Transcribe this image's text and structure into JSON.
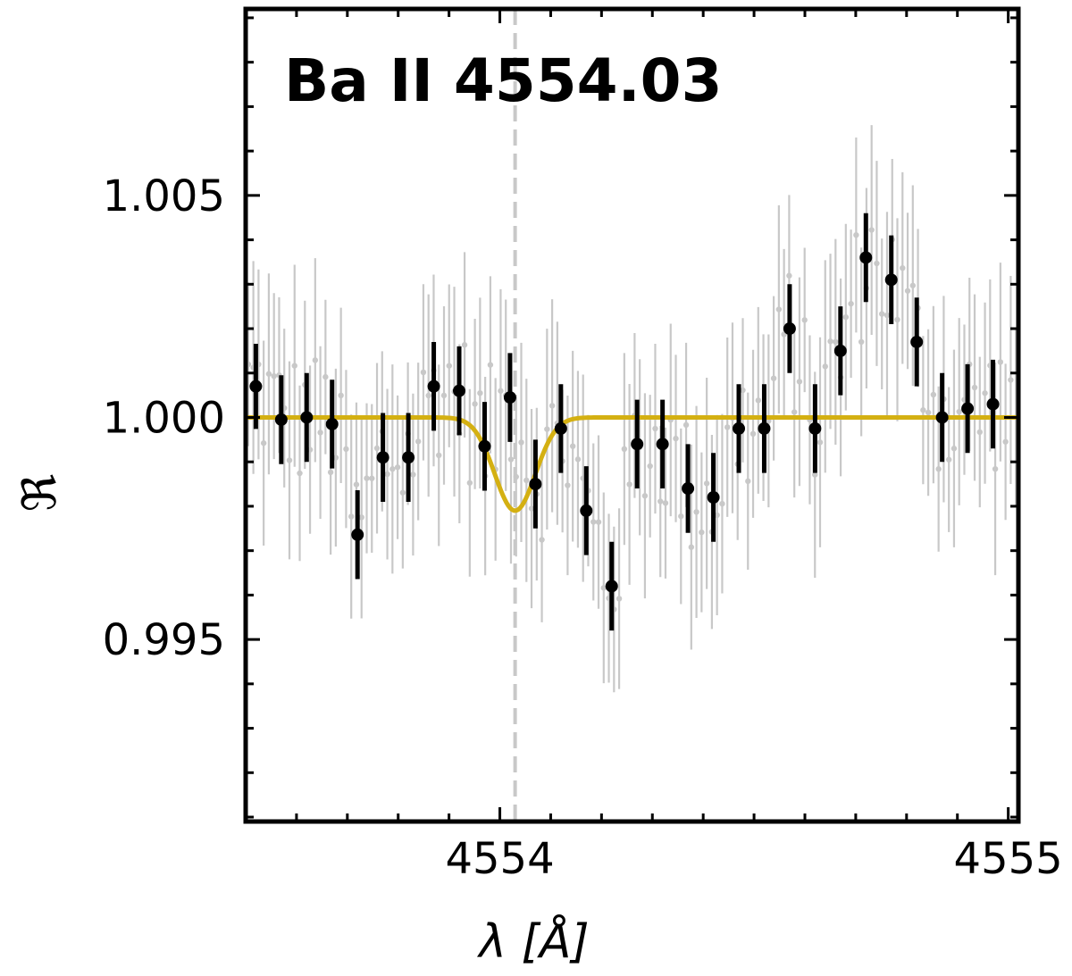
{
  "chart_data": {
    "type": "scatter",
    "title": "Ba II 4554.03",
    "xlabel": "λ [Å]",
    "ylabel": "ℜ",
    "xlim": [
      4553.5,
      4555.02
    ],
    "ylim": [
      0.9909,
      1.0092
    ],
    "xticks": [
      4554,
      4555
    ],
    "xtick_labels": [
      "4554",
      "4555"
    ],
    "yticks": [
      0.995,
      1.0,
      1.005
    ],
    "ytick_labels": [
      "0.995",
      "1.000",
      "1.005"
    ],
    "line_center": 4554.03,
    "colors": {
      "raw": "#c8c8c8",
      "binned": "#000000",
      "fit": "#d4b012",
      "center_line": "#c8c8c8"
    },
    "series": [
      {
        "type": "errorbar",
        "values": [
          {
            "x": 4553.52,
            "y": 1.0007,
            "err": 0.00096
          },
          {
            "x": 4553.57,
            "y": 0.99995,
            "err": 0.001
          },
          {
            "x": 4553.62,
            "y": 1.0,
            "err": 0.001
          },
          {
            "x": 4553.67,
            "y": 0.99985,
            "err": 0.001
          },
          {
            "x": 4553.72,
            "y": 0.99736,
            "err": 0.001
          },
          {
            "x": 4553.77,
            "y": 0.9991,
            "err": 0.001
          },
          {
            "x": 4553.82,
            "y": 0.9991,
            "err": 0.001
          },
          {
            "x": 4553.87,
            "y": 1.0007,
            "err": 0.001
          },
          {
            "x": 4553.92,
            "y": 1.0006,
            "err": 0.001
          },
          {
            "x": 4553.97,
            "y": 0.99935,
            "err": 0.001
          },
          {
            "x": 4554.02,
            "y": 1.00045,
            "err": 0.001
          },
          {
            "x": 4554.07,
            "y": 0.9985,
            "err": 0.001
          },
          {
            "x": 4554.12,
            "y": 0.99975,
            "err": 0.001
          },
          {
            "x": 4554.17,
            "y": 0.9979,
            "err": 0.001
          },
          {
            "x": 4554.22,
            "y": 0.9962,
            "err": 0.001
          },
          {
            "x": 4554.27,
            "y": 0.9994,
            "err": 0.001
          },
          {
            "x": 4554.32,
            "y": 0.9994,
            "err": 0.001
          },
          {
            "x": 4554.37,
            "y": 0.9984,
            "err": 0.001
          },
          {
            "x": 4554.42,
            "y": 0.9982,
            "err": 0.001
          },
          {
            "x": 4554.47,
            "y": 0.99975,
            "err": 0.001
          },
          {
            "x": 4554.52,
            "y": 0.99975,
            "err": 0.001
          },
          {
            "x": 4554.57,
            "y": 1.002,
            "err": 0.001
          },
          {
            "x": 4554.62,
            "y": 0.99975,
            "err": 0.001
          },
          {
            "x": 4554.67,
            "y": 1.0015,
            "err": 0.001
          },
          {
            "x": 4554.72,
            "y": 1.0036,
            "err": 0.001
          },
          {
            "x": 4554.77,
            "y": 1.0031,
            "err": 0.001
          },
          {
            "x": 4554.82,
            "y": 1.0017,
            "err": 0.001
          },
          {
            "x": 4554.87,
            "y": 1.0,
            "err": 0.001
          },
          {
            "x": 4554.92,
            "y": 1.0002,
            "err": 0.001
          },
          {
            "x": 4554.97,
            "y": 1.0003,
            "err": 0.001
          }
        ]
      },
      {
        "type": "line",
        "model": "gaussian",
        "baseline": 1.0,
        "center": 4554.03,
        "depth": 0.0021,
        "sigma": 0.04
      }
    ]
  }
}
